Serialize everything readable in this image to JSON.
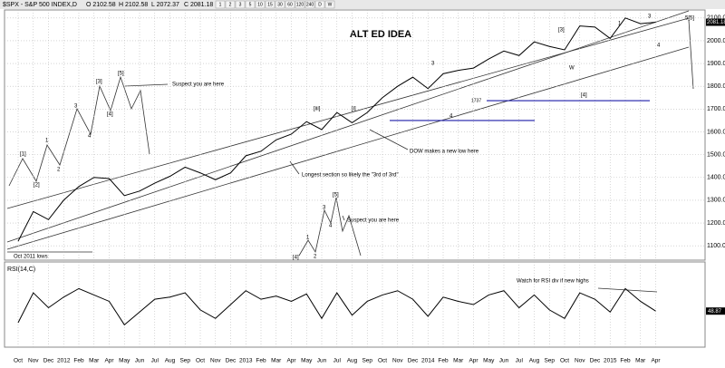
{
  "chart_data": [
    {
      "type": "line",
      "header": "$SPX - S&P 500 INDEX,D",
      "quote": [
        "O 2102.58",
        "H 2102.58",
        "L 2072.37",
        "C 2081.18"
      ],
      "toolbar": [
        "1",
        "2",
        "3",
        "5",
        "10",
        "15",
        "30",
        "60",
        "120",
        "240",
        "D",
        "W"
      ],
      "title": "ALT ED IDEA",
      "categories": [
        "Oct",
        "Nov",
        "Dec",
        "2012",
        "Feb",
        "Mar",
        "Apr",
        "May",
        "Jun",
        "Jul",
        "Aug",
        "Sep",
        "Oct",
        "Nov",
        "Dec",
        "2013",
        "Feb",
        "Mar",
        "Apr",
        "May",
        "Jun",
        "Jul",
        "Aug",
        "Sep",
        "Oct",
        "Nov",
        "Dec",
        "2014",
        "Feb",
        "Mar",
        "Apr",
        "May",
        "Jun",
        "Jul",
        "Aug",
        "Sep",
        "Oct",
        "Nov",
        "Dec",
        "2015",
        "Feb",
        "Mar",
        "Apr"
      ],
      "series": [
        {
          "name": "$SPX",
          "color": "#000000",
          "values": [
            1120,
            1250,
            1215,
            1300,
            1360,
            1400,
            1395,
            1320,
            1340,
            1375,
            1405,
            1445,
            1420,
            1390,
            1420,
            1495,
            1515,
            1565,
            1590,
            1645,
            1610,
            1685,
            1640,
            1685,
            1750,
            1800,
            1840,
            1790,
            1855,
            1870,
            1880,
            1920,
            1955,
            1935,
            1995,
            1975,
            1960,
            2065,
            2060,
            2010,
            2100,
            2075,
            2081.18
          ]
        }
      ],
      "ylim": [
        1037,
        2135
      ],
      "yticks": [
        {
          "value": 1100,
          "label": "1100.00"
        },
        {
          "value": 1200,
          "label": "1200.00"
        },
        {
          "value": 1300,
          "label": "1300.00"
        },
        {
          "value": 1400,
          "label": "1400.00"
        },
        {
          "value": 1500,
          "label": "1500.00"
        },
        {
          "value": 1600,
          "label": "1600.00"
        },
        {
          "value": 1700,
          "label": "1700.00"
        },
        {
          "value": 1800,
          "label": "1800.00"
        },
        {
          "value": 1900,
          "label": "1900.00"
        },
        {
          "value": 2000,
          "label": "2000.00"
        },
        {
          "value": 2100,
          "label": "2100.00"
        }
      ],
      "hlines": [
        1737,
        1650
      ],
      "hline_color": "#1c1ca8",
      "grid": true,
      "annotations": [
        "Suspect you are here",
        "Suspect you are here",
        "DOW makes a new low here",
        "Longest section so likely the \"3rd of 3rd\"",
        "Oct 2011 lows",
        "[1]",
        "[2]",
        "1",
        "2",
        "3",
        "4",
        "[3]",
        "[4]",
        "[5]",
        "[4]",
        "1",
        "2",
        "3",
        "4",
        "[5]",
        "[iii]",
        "[i]",
        "3",
        "4",
        "[3]",
        "[4]",
        "W",
        "1",
        "3",
        "4",
        "5[5]"
      ]
    },
    {
      "type": "line",
      "title": "RSI(14,C)",
      "series": [
        {
          "name": "RSI",
          "color": "#000000",
          "values": [
            38,
            66,
            52,
            62,
            70,
            64,
            58,
            36,
            48,
            60,
            62,
            66,
            50,
            42,
            55,
            68,
            60,
            63,
            58,
            65,
            42,
            66,
            45,
            58,
            64,
            68,
            60,
            44,
            62,
            58,
            55,
            64,
            68,
            52,
            64,
            50,
            42,
            66,
            60,
            48,
            70,
            58,
            48.87
          ]
        }
      ],
      "ylim": [
        15,
        95
      ],
      "annotations": [
        "Watch for RSI div if new highs"
      ]
    }
  ]
}
